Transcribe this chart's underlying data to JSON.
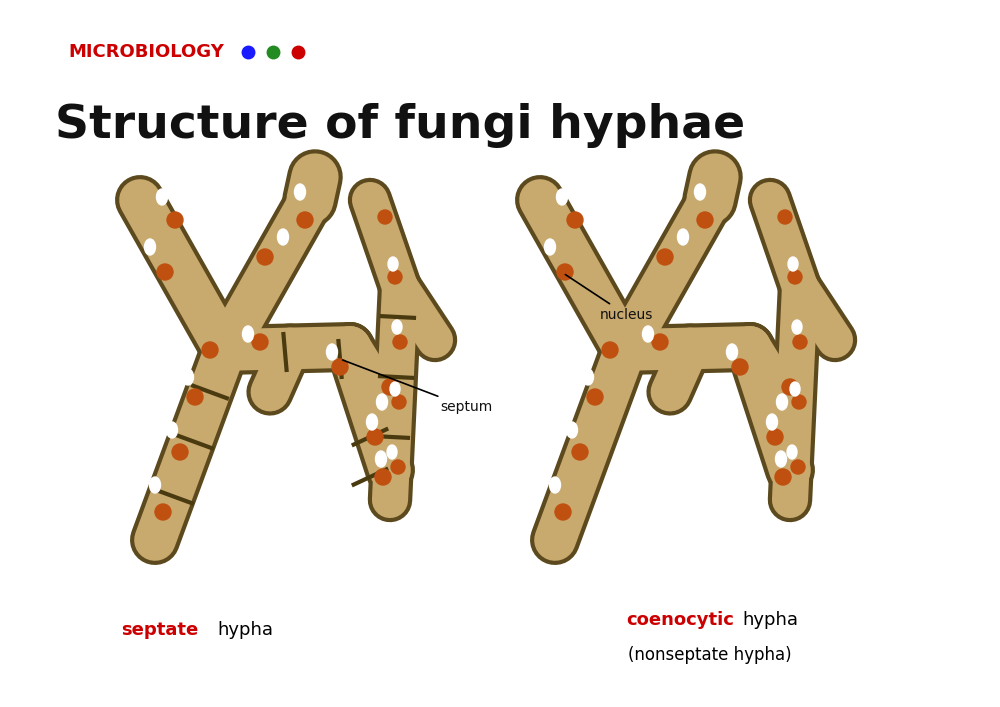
{
  "title": "Structure of fungi hyphae",
  "subtitle": "MICROBIOLOGY",
  "bg_color": "#ffffff",
  "hypha_fill": "#C8A96E",
  "hypha_outline": "#5C4A1E",
  "septum_color": "#4a3a10",
  "nucleus_color": "#C05010",
  "vacuole_color": "#ffffff",
  "label_septate_red": "septate",
  "label_septate_black": " hypha",
  "label_coenocytic_red": "coenocytic",
  "label_coenocytic_black": " hypha",
  "label_nonseptate": "(nonseptate hypha)",
  "label_septum": "septum",
  "label_nucleus": "nucleus",
  "dot_blue": "#1a1aff",
  "dot_green": "#228B22",
  "dot_red": "#cc0000",
  "title_color": "#111111",
  "subtitle_color": "#cc0000",
  "red_label_color": "#cc0000",
  "annotation_color": "#111111",
  "figsize": [
    10.0,
    7.07
  ],
  "dpi": 100
}
